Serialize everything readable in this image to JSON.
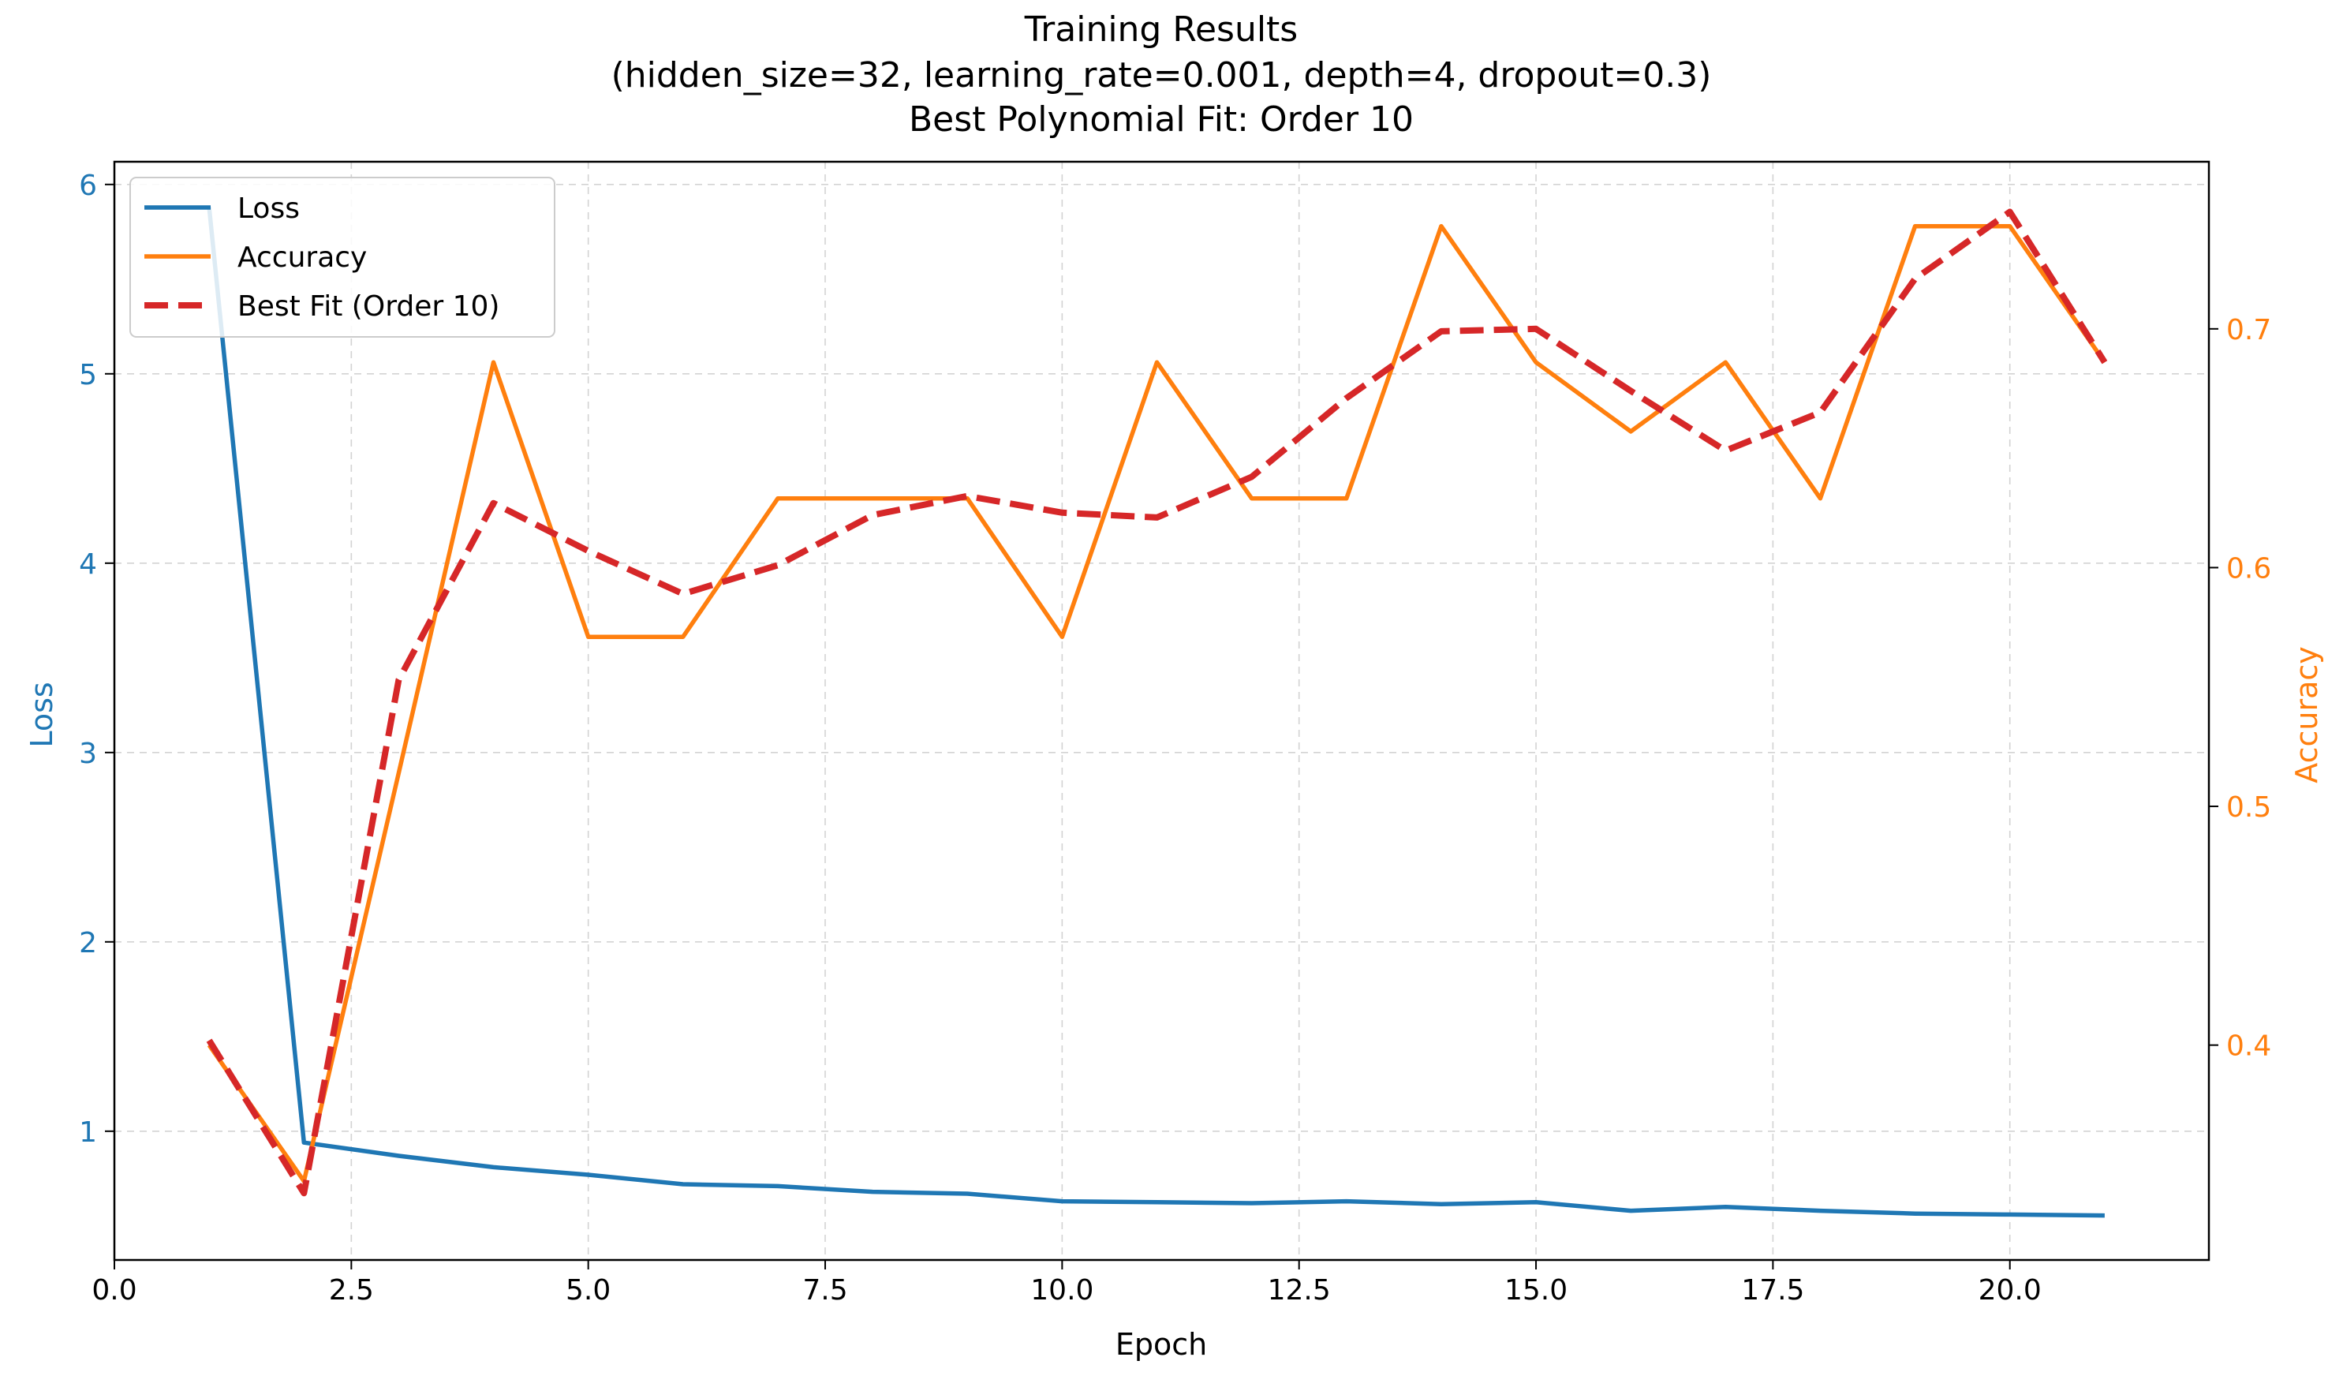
{
  "chart_data": {
    "type": "line",
    "title_lines": [
      "Training Results",
      "(hidden_size=32, learning_rate=0.001, depth=4, dropout=0.3)",
      "Best Polynomial Fit: Order 10"
    ],
    "xlabel": "Epoch",
    "ylabel_left": "Loss",
    "ylabel_right": "Accuracy",
    "xlim": [
      0,
      22.1
    ],
    "ylim_left": [
      0.32,
      6.12
    ],
    "ylim_right": [
      0.31,
      0.77
    ],
    "x_ticks": [
      0.0,
      2.5,
      5.0,
      7.5,
      10.0,
      12.5,
      15.0,
      17.5,
      20.0
    ],
    "x_tick_labels": [
      "0.0",
      "2.5",
      "5.0",
      "7.5",
      "10.0",
      "12.5",
      "15.0",
      "17.5",
      "20.0"
    ],
    "y_left_ticks": [
      1,
      2,
      3,
      4,
      5,
      6
    ],
    "y_left_tick_labels": [
      "1",
      "2",
      "3",
      "4",
      "5",
      "6"
    ],
    "y_right_ticks": [
      0.4,
      0.5,
      0.6,
      0.7
    ],
    "y_right_tick_labels": [
      "0.4",
      "0.5",
      "0.6",
      "0.7"
    ],
    "grid": true,
    "legend_position": "top-left",
    "x": [
      1,
      2,
      3,
      4,
      5,
      6,
      7,
      8,
      9,
      10,
      11,
      12,
      13,
      14,
      15,
      16,
      17,
      18,
      19,
      20,
      21
    ],
    "series": [
      {
        "name": "Loss",
        "axis": "left",
        "style": "solid",
        "color": "#1f77b4",
        "values": [
          5.88,
          0.94,
          0.87,
          0.81,
          0.77,
          0.72,
          0.71,
          0.68,
          0.67,
          0.63,
          0.625,
          0.62,
          0.63,
          0.615,
          0.625,
          0.58,
          0.6,
          0.58,
          0.565,
          0.56,
          0.555
        ]
      },
      {
        "name": "Accuracy",
        "axis": "right",
        "style": "solid",
        "color": "#ff7f0e",
        "values": [
          0.4,
          0.343,
          0.514,
          0.686,
          0.571,
          0.571,
          0.629,
          0.629,
          0.629,
          0.571,
          0.686,
          0.629,
          0.629,
          0.743,
          0.686,
          0.657,
          0.686,
          0.629,
          0.743,
          0.743,
          0.686
        ]
      },
      {
        "name": "Best Fit (Order 10)",
        "axis": "right",
        "style": "dashed",
        "color": "#d62728",
        "values": [
          0.402,
          0.338,
          0.553,
          0.627,
          0.607,
          0.589,
          0.601,
          0.622,
          0.63,
          0.623,
          0.621,
          0.638,
          0.671,
          0.699,
          0.7,
          0.674,
          0.649,
          0.665,
          0.721,
          0.749,
          0.686
        ]
      }
    ]
  }
}
